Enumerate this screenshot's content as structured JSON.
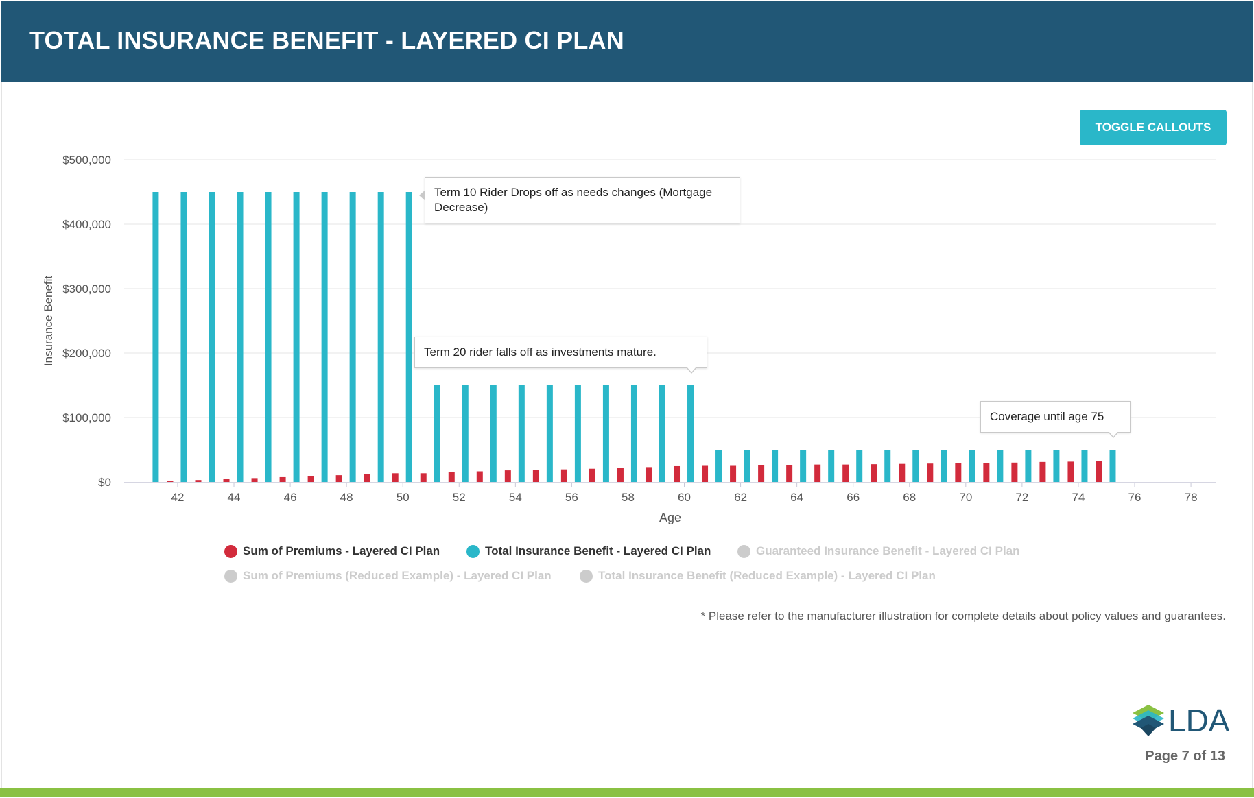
{
  "header": {
    "title": "TOTAL INSURANCE BENEFIT - LAYERED CI PLAN"
  },
  "toolbar": {
    "toggle_callouts_label": "TOGGLE CALLOUTS"
  },
  "colors": {
    "header_bg": "#215776",
    "premium": "#d22b3c",
    "benefit": "#2ab7c9",
    "disabled": "#cccccc",
    "bottom_bar": "#8ac143"
  },
  "chart_data": {
    "type": "bar",
    "xlabel": "Age",
    "ylabel": "Insurance Benefit",
    "ylim": [
      0,
      500000
    ],
    "yticks": [
      0,
      100000,
      200000,
      300000,
      400000,
      500000
    ],
    "ytick_labels": [
      "$0",
      "$100,000",
      "$200,000",
      "$300,000",
      "$400,000",
      "$500,000"
    ],
    "xlim": [
      40.1,
      78.9
    ],
    "xticks": [
      42,
      44,
      46,
      48,
      50,
      52,
      54,
      56,
      58,
      60,
      62,
      64,
      66,
      68,
      70,
      72,
      74,
      76,
      78
    ],
    "x": [
      41,
      42,
      43,
      44,
      45,
      46,
      47,
      48,
      49,
      50,
      51,
      52,
      53,
      54,
      55,
      56,
      57,
      58,
      59,
      60,
      61,
      62,
      63,
      64,
      65,
      66,
      67,
      68,
      69,
      70,
      71,
      72,
      73,
      74,
      75
    ],
    "series": [
      {
        "name": "Sum of Premiums - Layered CI Plan",
        "color": "#d22b3c",
        "values": [
          0,
          1500,
          3000,
          4500,
          6000,
          7500,
          9000,
          10500,
          12000,
          13500,
          13500,
          15000,
          16500,
          18000,
          19000,
          19500,
          20500,
          22000,
          23000,
          24500,
          25000,
          25000,
          26000,
          26500,
          27000,
          27000,
          27500,
          28000,
          28500,
          29000,
          29500,
          30000,
          31000,
          31500,
          32000
        ]
      },
      {
        "name": "Total Insurance Benefit - Layered CI Plan",
        "color": "#2ab7c9",
        "values": [
          450000,
          450000,
          450000,
          450000,
          450000,
          450000,
          450000,
          450000,
          450000,
          450000,
          150000,
          150000,
          150000,
          150000,
          150000,
          150000,
          150000,
          150000,
          150000,
          150000,
          50000,
          50000,
          50000,
          50000,
          50000,
          50000,
          50000,
          50000,
          50000,
          50000,
          50000,
          50000,
          50000,
          50000,
          50000
        ]
      }
    ],
    "legend": [
      {
        "label": "Sum of Premiums - Layered CI Plan",
        "color": "#d22b3c",
        "active": true
      },
      {
        "label": "Total Insurance Benefit - Layered CI Plan",
        "color": "#2ab7c9",
        "active": true
      },
      {
        "label": "Guaranteed Insurance Benefit - Layered CI Plan",
        "color": "#cccccc",
        "active": false
      },
      {
        "label": "Sum of Premiums (Reduced Example) - Layered CI Plan",
        "color": "#cccccc",
        "active": false
      },
      {
        "label": "Total Insurance Benefit (Reduced Example) - Layered CI Plan",
        "color": "#cccccc",
        "active": false
      }
    ],
    "annotations": [
      {
        "text": "Term 10 Rider Drops off as needs changes (Mortgage Decrease)",
        "age": 50
      },
      {
        "text": "Term 20 rider falls off as investments mature.",
        "age": 60
      },
      {
        "text": "Coverage until age 75",
        "age": 75
      }
    ]
  },
  "footnote": "* Please refer to the manufacturer illustration for complete details about policy values and guarantees.",
  "footer": {
    "logo_text": "LDA",
    "page_label": "Page 7 of 13"
  }
}
